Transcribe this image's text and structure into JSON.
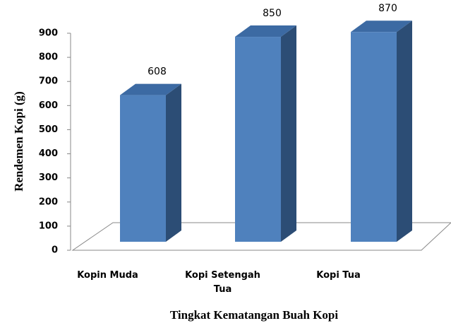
{
  "chart_data": {
    "type": "bar",
    "x_label": "Tingkat Kematangan Buah Kopi",
    "y_label": "Rendemen Kopi (g)",
    "categories": [
      "Kopin Muda",
      "Kopi Setengah Tua",
      "Kopi Tua"
    ],
    "values": [
      608,
      850,
      870
    ],
    "color": "#4f81bd",
    "ylim": [
      0,
      900
    ],
    "yticks": [
      0,
      100,
      200,
      300,
      400,
      500,
      600,
      700,
      800,
      900
    ]
  }
}
